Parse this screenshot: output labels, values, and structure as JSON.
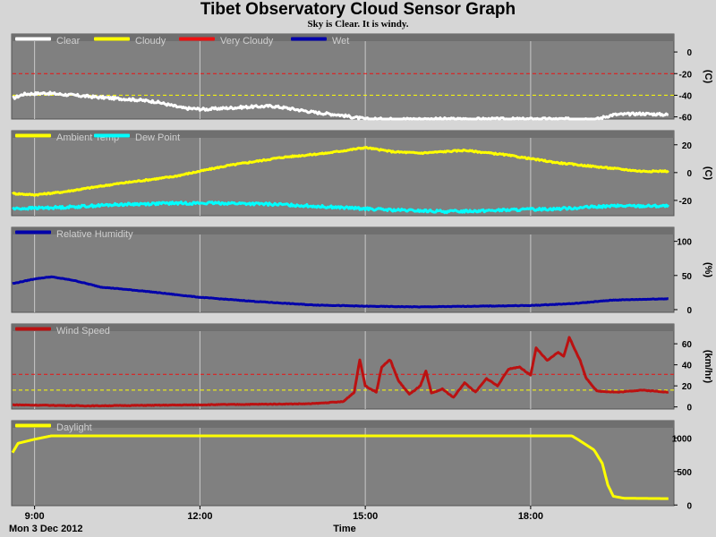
{
  "title": "Tibet Observatory Cloud Sensor Graph",
  "subtitle": "Sky is Clear. It is windy.",
  "x_ticks": [
    "9:00",
    "12:00",
    "15:00",
    "18:00"
  ],
  "x_tick_hours": [
    9,
    12,
    15,
    18
  ],
  "x_range_hours": [
    8.6,
    20.6
  ],
  "date_label": "Mon 3 Dec 2012",
  "xlabel": "Time",
  "colors": {
    "plot_bg": "#808080",
    "grid": "#c8c8c8",
    "white": "#ffffff",
    "yellow": "#ffff00",
    "red": "#ee1111",
    "blue": "#0000aa",
    "cyan": "#00ffff",
    "dark_red": "#bb1111"
  },
  "chart_data": [
    {
      "type": "line",
      "panel": "sky_temperature",
      "ylabel": "(C)",
      "ylim": [
        -62,
        10
      ],
      "yticks": [
        0,
        -20,
        -40,
        -60
      ],
      "thresholds": [
        {
          "value": -20,
          "color": "#ee1111",
          "style": "dashed"
        },
        {
          "value": -40,
          "color": "#ffff00",
          "style": "dashed"
        }
      ],
      "legend": [
        {
          "label": "Clear",
          "color": "#ffffff"
        },
        {
          "label": "Cloudy",
          "color": "#ffff00"
        },
        {
          "label": "Very Cloudy",
          "color": "#ee1111"
        },
        {
          "label": "Wet",
          "color": "#0000aa"
        }
      ],
      "series": [
        {
          "name": "Sky Temp",
          "color": "#ffffff",
          "noise": 1.2,
          "points": [
            [
              8.6,
              -43
            ],
            [
              8.8,
              -39
            ],
            [
              9.2,
              -38
            ],
            [
              9.7,
              -40
            ],
            [
              10.2,
              -42
            ],
            [
              10.8,
              -44
            ],
            [
              11.2,
              -46
            ],
            [
              11.7,
              -52
            ],
            [
              12.1,
              -53
            ],
            [
              12.8,
              -51
            ],
            [
              13.3,
              -50
            ],
            [
              13.6,
              -52
            ],
            [
              14.1,
              -56
            ],
            [
              14.5,
              -58
            ],
            [
              15.0,
              -62
            ],
            [
              15.5,
              -62
            ],
            [
              16.5,
              -62
            ],
            [
              17.5,
              -62
            ],
            [
              18.5,
              -62
            ],
            [
              19.2,
              -62
            ],
            [
              19.5,
              -58
            ],
            [
              20.0,
              -57
            ],
            [
              20.5,
              -58
            ]
          ]
        }
      ]
    },
    {
      "type": "line",
      "panel": "temperatures",
      "ylabel": "(C)",
      "ylim": [
        -31,
        25
      ],
      "yticks": [
        20,
        0,
        -20
      ],
      "legend": [
        {
          "label": "Ambient Temp",
          "color": "#ffff00"
        },
        {
          "label": "Dew Point",
          "color": "#00ffff"
        }
      ],
      "series": [
        {
          "name": "Ambient Temp",
          "color": "#ffff00",
          "noise": 0.5,
          "points": [
            [
              8.6,
              -15
            ],
            [
              9.0,
              -16
            ],
            [
              9.5,
              -14
            ],
            [
              10.5,
              -8
            ],
            [
              11.5,
              -3
            ],
            [
              12.5,
              5
            ],
            [
              13.5,
              11
            ],
            [
              14.3,
              14
            ],
            [
              15.0,
              18
            ],
            [
              15.5,
              15
            ],
            [
              16.0,
              14
            ],
            [
              16.8,
              16
            ],
            [
              17.5,
              13
            ],
            [
              18.5,
              7
            ],
            [
              19.5,
              3
            ],
            [
              20.0,
              1
            ],
            [
              20.5,
              1
            ]
          ]
        },
        {
          "name": "Dew Point",
          "color": "#00ffff",
          "noise": 0.9,
          "points": [
            [
              8.6,
              -26
            ],
            [
              9.5,
              -25
            ],
            [
              10.5,
              -23
            ],
            [
              11.5,
              -22
            ],
            [
              12.5,
              -22
            ],
            [
              13.5,
              -23
            ],
            [
              14.5,
              -25
            ],
            [
              15.5,
              -27
            ],
            [
              16.5,
              -28
            ],
            [
              17.5,
              -27
            ],
            [
              18.5,
              -26
            ],
            [
              19.5,
              -24
            ],
            [
              20.5,
              -24
            ]
          ]
        }
      ]
    },
    {
      "type": "line",
      "panel": "relative_humidity",
      "ylabel": "(%)",
      "ylim": [
        -4,
        110
      ],
      "yticks": [
        100,
        50,
        0
      ],
      "legend": [
        {
          "label": "Relative Humidity",
          "color": "#0000aa"
        }
      ],
      "series": [
        {
          "name": "Relative Humidity",
          "color": "#0000aa",
          "noise": 0.4,
          "points": [
            [
              8.6,
              38
            ],
            [
              9.0,
              45
            ],
            [
              9.3,
              48
            ],
            [
              9.7,
              43
            ],
            [
              10.2,
              33
            ],
            [
              11.0,
              27
            ],
            [
              12.0,
              18
            ],
            [
              13.0,
              12
            ],
            [
              14.0,
              7
            ],
            [
              15.0,
              5
            ],
            [
              16.0,
              4
            ],
            [
              17.0,
              5
            ],
            [
              18.0,
              6
            ],
            [
              18.8,
              9
            ],
            [
              19.5,
              14
            ],
            [
              20.5,
              16
            ]
          ]
        }
      ]
    },
    {
      "type": "line",
      "panel": "wind_speed",
      "ylabel": "(km/hr)",
      "ylim": [
        -2,
        72
      ],
      "yticks": [
        60,
        40,
        20,
        0
      ],
      "thresholds": [
        {
          "value": 31,
          "color": "#ee1111",
          "style": "dashed"
        },
        {
          "value": 16,
          "color": "#ffff00",
          "style": "dashed"
        }
      ],
      "legend": [
        {
          "label": "Wind Speed",
          "color": "#bb1111"
        }
      ],
      "series": [
        {
          "name": "Wind Speed",
          "color": "#bb1111",
          "noise": 0.3,
          "points": [
            [
              8.6,
              2
            ],
            [
              10.0,
              1
            ],
            [
              12.0,
              2
            ],
            [
              14.0,
              3
            ],
            [
              14.6,
              5
            ],
            [
              14.8,
              14
            ],
            [
              14.9,
              45
            ],
            [
              15.0,
              20
            ],
            [
              15.2,
              14
            ],
            [
              15.3,
              38
            ],
            [
              15.45,
              45
            ],
            [
              15.6,
              25
            ],
            [
              15.8,
              12
            ],
            [
              16.0,
              20
            ],
            [
              16.1,
              34
            ],
            [
              16.2,
              13
            ],
            [
              16.4,
              17
            ],
            [
              16.6,
              9
            ],
            [
              16.8,
              23
            ],
            [
              17.0,
              14
            ],
            [
              17.2,
              27
            ],
            [
              17.4,
              20
            ],
            [
              17.6,
              36
            ],
            [
              17.8,
              38
            ],
            [
              18.0,
              30
            ],
            [
              18.1,
              56
            ],
            [
              18.3,
              44
            ],
            [
              18.5,
              52
            ],
            [
              18.6,
              48
            ],
            [
              18.7,
              66
            ],
            [
              18.9,
              44
            ],
            [
              19.0,
              28
            ],
            [
              19.2,
              15
            ],
            [
              19.6,
              14
            ],
            [
              20.0,
              16
            ],
            [
              20.5,
              14
            ]
          ]
        }
      ]
    },
    {
      "type": "line",
      "panel": "daylight",
      "ylabel": "",
      "ylim": [
        -10,
        1150
      ],
      "yticks": [
        1000,
        500,
        0
      ],
      "legend": [
        {
          "label": "Daylight",
          "color": "#ffff00"
        }
      ],
      "series": [
        {
          "name": "Daylight",
          "color": "#ffff00",
          "noise": 0,
          "points": [
            [
              8.6,
              780
            ],
            [
              8.7,
              920
            ],
            [
              9.0,
              980
            ],
            [
              9.3,
              1030
            ],
            [
              18.6,
              1030
            ],
            [
              18.75,
              1030
            ],
            [
              18.85,
              980
            ],
            [
              19.0,
              900
            ],
            [
              19.15,
              820
            ],
            [
              19.3,
              620
            ],
            [
              19.4,
              300
            ],
            [
              19.5,
              130
            ],
            [
              19.7,
              100
            ],
            [
              20.5,
              95
            ]
          ]
        }
      ]
    }
  ]
}
